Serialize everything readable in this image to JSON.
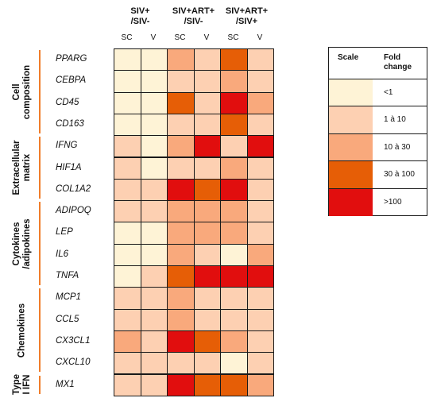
{
  "colors": {
    "lt1": "#fef3d6",
    "1to10": "#fdd0b2",
    "10to30": "#f9a97c",
    "30to100": "#e65e06",
    "gt100": "#e10e0e",
    "category_bar": "#f07d2a"
  },
  "chart_data": {
    "type": "heatmap",
    "column_groups": [
      {
        "label": "SIV+\n/SIV-",
        "subcolumns": [
          "SC",
          "V"
        ]
      },
      {
        "label": "SIV+ART+\n/SIV-",
        "subcolumns": [
          "SC",
          "V"
        ]
      },
      {
        "label": "SIV+ART+\n/SIV+",
        "subcolumns": [
          "SC",
          "V"
        ]
      }
    ],
    "categories": [
      {
        "label": "Cell\ncomposition",
        "genes": [
          "PPARG",
          "CEBPA",
          "CD45",
          "CD163"
        ]
      },
      {
        "label": "Extracellular\nmatrix",
        "genes": [
          "IFNG",
          "HIF1A",
          "COL1A2"
        ]
      },
      {
        "label": "Cytokines\n/adipokines",
        "genes": [
          "ADIPOQ",
          "LEP",
          "IL6",
          "TNFA"
        ]
      },
      {
        "label": "Chemokines",
        "genes": [
          "MCP1",
          "CCL5",
          "CX3CL1",
          "CXCL10"
        ]
      },
      {
        "label": "Type\nI IFN",
        "genes": [
          "MX1"
        ]
      }
    ],
    "values": [
      [
        "lt1",
        "lt1",
        "10to30",
        "1to10",
        "30to100",
        "1to10"
      ],
      [
        "lt1",
        "lt1",
        "1to10",
        "1to10",
        "10to30",
        "1to10"
      ],
      [
        "lt1",
        "lt1",
        "30to100",
        "1to10",
        "gt100",
        "10to30"
      ],
      [
        "lt1",
        "lt1",
        "1to10",
        "1to10",
        "30to100",
        "1to10"
      ],
      [
        "1to10",
        "lt1",
        "10to30",
        "gt100",
        "1to10",
        "gt100"
      ],
      [
        "1to10",
        "lt1",
        "1to10",
        "1to10",
        "10to30",
        "1to10"
      ],
      [
        "1to10",
        "1to10",
        "gt100",
        "30to100",
        "gt100",
        "1to10"
      ],
      [
        "1to10",
        "1to10",
        "10to30",
        "10to30",
        "10to30",
        "1to10"
      ],
      [
        "lt1",
        "lt1",
        "10to30",
        "10to30",
        "10to30",
        "1to10"
      ],
      [
        "lt1",
        "lt1",
        "10to30",
        "1to10",
        "lt1",
        "10to30"
      ],
      [
        "lt1",
        "1to10",
        "30to100",
        "gt100",
        "gt100",
        "gt100"
      ],
      [
        "1to10",
        "1to10",
        "10to30",
        "1to10",
        "1to10",
        "1to10"
      ],
      [
        "1to10",
        "1to10",
        "10to30",
        "1to10",
        "1to10",
        "1to10"
      ],
      [
        "10to30",
        "1to10",
        "gt100",
        "30to100",
        "10to30",
        "1to10"
      ],
      [
        "1to10",
        "1to10",
        "1to10",
        "1to10",
        "lt1",
        "1to10"
      ],
      [
        "1to10",
        "1to10",
        "gt100",
        "30to100",
        "30to100",
        "10to30"
      ]
    ],
    "legend": {
      "header_scale": "Scale",
      "header_fold": "Fold\nchange",
      "entries": [
        {
          "key": "lt1",
          "label": "<1"
        },
        {
          "key": "1to10",
          "label": "1 à 10"
        },
        {
          "key": "10to30",
          "label": "10 à 30"
        },
        {
          "key": "30to100",
          "label": "30 à 100"
        },
        {
          "key": "gt100",
          "label": ">100"
        }
      ]
    }
  }
}
